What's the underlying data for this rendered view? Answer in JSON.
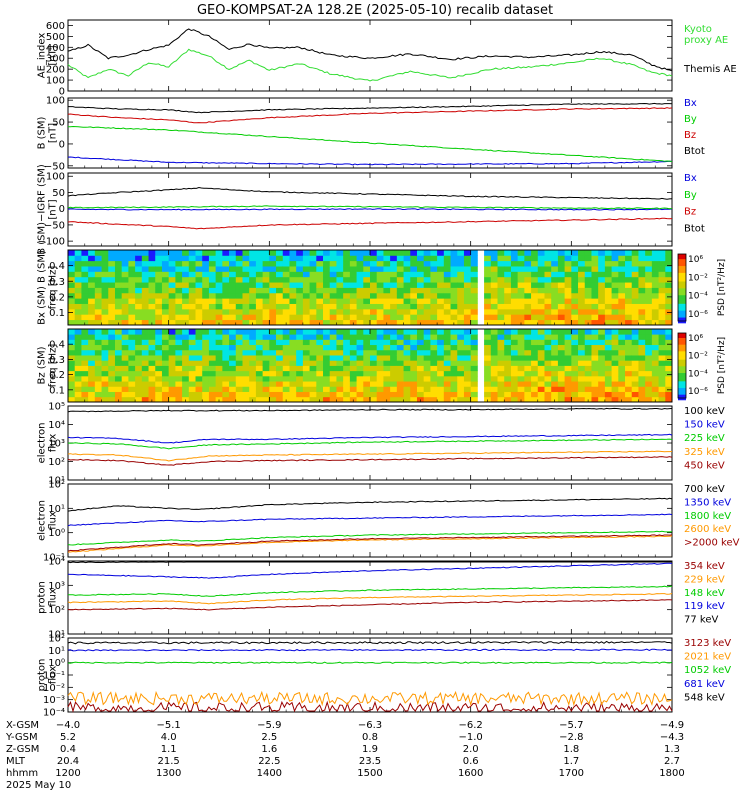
{
  "title": "GEO-KOMPSAT-2A 128.2E (2025-05-10) recalib dataset",
  "colors": {
    "black": "#000000",
    "blue": "#0000dd",
    "green": "#00cc00",
    "red": "#cc0000",
    "orange": "#ff9900",
    "darkred": "#990000",
    "lime": "#33dd33"
  },
  "time_axis": {
    "start_hour": 12,
    "end_hour": 18,
    "tick_labels": [
      "1200",
      "1300",
      "1400",
      "1500",
      "1600",
      "1700",
      "1800"
    ]
  },
  "footer": {
    "rows": [
      {
        "label": "X-GSM",
        "values": [
          "−4.0",
          "−5.1",
          "−5.9",
          "−6.3",
          "−6.2",
          "−5.7",
          "−4.9"
        ]
      },
      {
        "label": "Y-GSM",
        "values": [
          "5.2",
          "4.0",
          "2.5",
          "0.8",
          "−1.0",
          "−2.8",
          "−4.3"
        ]
      },
      {
        "label": "Z-GSM",
        "values": [
          "0.4",
          "1.1",
          "1.6",
          "1.9",
          "2.0",
          "1.8",
          "1.3"
        ]
      },
      {
        "label": "MLT",
        "values": [
          "20.4",
          "21.5",
          "22.5",
          "23.5",
          "0.6",
          "1.7",
          "2.7"
        ]
      },
      {
        "label": "hhmm",
        "values": [
          "1200",
          "1300",
          "1400",
          "1500",
          "1600",
          "1700",
          "1800"
        ]
      }
    ],
    "date": "2025 May 10"
  },
  "chart_data": [
    {
      "type": "line",
      "ylabel_lines": [
        "AE_index",
        "[nT]"
      ],
      "ylim": [
        0,
        650
      ],
      "y_ticks": [
        "0",
        "100",
        "200",
        "300",
        "400",
        "500",
        "600"
      ],
      "y_tick_values": [
        0,
        100,
        200,
        300,
        400,
        500,
        600
      ],
      "scale": "linear",
      "series": [
        {
          "name": "Kyoto proxy AE",
          "label_lines": [
            "Kyoto",
            "proxy AE"
          ],
          "color": "#33dd33",
          "x": [
            12.0,
            12.2,
            12.4,
            12.6,
            12.8,
            13.0,
            13.2,
            13.4,
            13.6,
            13.8,
            14.0,
            14.3,
            14.6,
            15.0,
            15.4,
            15.8,
            16.2,
            16.6,
            17.0,
            17.3,
            17.6,
            17.8,
            18.0
          ],
          "y": [
            240,
            120,
            200,
            140,
            260,
            220,
            380,
            320,
            200,
            280,
            190,
            250,
            160,
            90,
            180,
            120,
            200,
            220,
            260,
            300,
            240,
            170,
            140
          ]
        },
        {
          "name": "Themis AE",
          "label_lines": [
            "Themis AE"
          ],
          "color": "#000000",
          "x": [
            12.0,
            12.2,
            12.4,
            12.6,
            12.8,
            13.0,
            13.2,
            13.4,
            13.6,
            13.8,
            14.0,
            14.3,
            14.6,
            15.0,
            15.4,
            15.8,
            16.2,
            16.6,
            17.0,
            17.3,
            17.6,
            17.8,
            18.0
          ],
          "y": [
            360,
            420,
            300,
            330,
            380,
            420,
            570,
            500,
            380,
            430,
            390,
            400,
            330,
            300,
            340,
            290,
            320,
            310,
            330,
            360,
            330,
            240,
            180
          ]
        }
      ]
    },
    {
      "type": "line",
      "ylabel_lines": [
        "B (SM)",
        "[nT]"
      ],
      "ylim": [
        -55,
        105
      ],
      "y_ticks": [
        "−50",
        "0",
        "50",
        "100"
      ],
      "y_tick_values": [
        -50,
        0,
        50,
        100
      ],
      "scale": "linear",
      "series": [
        {
          "name": "Bx",
          "color": "#0000dd",
          "x": [
            12,
            13,
            14,
            15,
            16,
            17,
            18
          ],
          "y": [
            -30,
            -42,
            -45,
            -47,
            -46,
            -45,
            -40
          ]
        },
        {
          "name": "By",
          "color": "#00cc00",
          "x": [
            12,
            13,
            14,
            15,
            16,
            17,
            18
          ],
          "y": [
            40,
            32,
            17,
            2,
            -12,
            -26,
            -40
          ]
        },
        {
          "name": "Bz",
          "color": "#cc0000",
          "x": [
            12,
            12.5,
            13,
            13.3,
            14,
            15,
            16,
            17,
            18
          ],
          "y": [
            68,
            60,
            55,
            48,
            60,
            70,
            75,
            80,
            82
          ]
        },
        {
          "name": "Btot",
          "color": "#000000",
          "x": [
            12,
            12.5,
            13,
            13.3,
            14,
            15,
            16,
            17,
            18
          ],
          "y": [
            85,
            80,
            78,
            72,
            78,
            82,
            86,
            91,
            92
          ]
        }
      ]
    },
    {
      "type": "line",
      "ylabel_lines": [
        "B (SM)−IGRF (SM)",
        "[nT]"
      ],
      "ylim": [
        -115,
        110
      ],
      "y_ticks": [
        "−100",
        "−50",
        "0",
        "50",
        "100"
      ],
      "y_tick_values": [
        -100,
        -50,
        0,
        50,
        100
      ],
      "scale": "linear",
      "series": [
        {
          "name": "Bx",
          "color": "#0000dd",
          "x": [
            12,
            13,
            14,
            15,
            16,
            17,
            18
          ],
          "y": [
            -2,
            -3,
            -2,
            -1,
            -2,
            -3,
            -2
          ]
        },
        {
          "name": "By",
          "color": "#00cc00",
          "x": [
            12,
            13,
            14,
            15,
            16,
            17,
            18
          ],
          "y": [
            3,
            5,
            8,
            6,
            4,
            2,
            1
          ]
        },
        {
          "name": "Bz",
          "color": "#cc0000",
          "x": [
            12,
            12.5,
            13,
            13.3,
            14,
            15,
            16,
            17,
            18
          ],
          "y": [
            -40,
            -48,
            -55,
            -62,
            -50,
            -45,
            -40,
            -35,
            -30
          ]
        },
        {
          "name": "Btot",
          "color": "#000000",
          "x": [
            12,
            12.5,
            13,
            13.3,
            14,
            15,
            16,
            17,
            18
          ],
          "y": [
            40,
            50,
            58,
            64,
            52,
            45,
            38,
            34,
            30
          ]
        }
      ]
    },
    {
      "type": "heatmap",
      "ylabel_lines": [
        "Bx (SM) B (SM)",
        "freq [Hz]"
      ],
      "ylim": [
        0.02,
        0.5
      ],
      "y_ticks": [
        "0.1",
        "0.2",
        "0.3",
        "0.4"
      ],
      "y_tick_values": [
        0.1,
        0.2,
        0.3,
        0.4
      ],
      "data_gap_hour": 16.1,
      "colorbar": {
        "label": "PSD [nT²/Hz]",
        "ticks": [
          "10⁶",
          "10⁻²",
          "10⁻⁴",
          "10⁻⁶"
        ]
      }
    },
    {
      "type": "heatmap",
      "ylabel_lines": [
        "Bz (SM)",
        "freq [Hz]"
      ],
      "ylim": [
        0.02,
        0.5
      ],
      "y_ticks": [
        "0.1",
        "0.2",
        "0.3",
        "0.4"
      ],
      "y_tick_values": [
        0.1,
        0.2,
        0.3,
        0.4
      ],
      "data_gap_hour": 16.1,
      "colorbar": {
        "label": "PSD [nT²/Hz]",
        "ticks": [
          "10⁶",
          "10⁻²",
          "10⁻⁴",
          "10⁻⁶"
        ]
      }
    },
    {
      "type": "line",
      "ylabel_lines": [
        "electron",
        "flux"
      ],
      "scale": "log",
      "ylim_log": [
        1,
        5
      ],
      "y_ticks": [
        "10¹",
        "10²",
        "10³",
        "10⁴",
        "10⁵"
      ],
      "y_tick_values": [
        1,
        2,
        3,
        4,
        5
      ],
      "series": [
        {
          "name": "100 keV",
          "color": "#000000",
          "x": [
            12,
            13,
            14,
            15,
            16,
            17,
            18
          ],
          "y_log": [
            4.7,
            4.75,
            4.75,
            4.8,
            4.8,
            4.85,
            4.85
          ]
        },
        {
          "name": "150 keV",
          "color": "#0000dd",
          "x": [
            12,
            12.5,
            13,
            13.4,
            14,
            15,
            16,
            17,
            18
          ],
          "y_log": [
            3.3,
            3.25,
            3.0,
            3.2,
            3.2,
            3.3,
            3.35,
            3.4,
            3.45
          ]
        },
        {
          "name": "225 keV",
          "color": "#00cc00",
          "x": [
            12,
            12.5,
            13,
            13.4,
            14,
            15,
            16,
            17,
            18
          ],
          "y_log": [
            3.0,
            2.95,
            2.7,
            2.9,
            2.95,
            3.05,
            3.1,
            3.15,
            3.2
          ]
        },
        {
          "name": "325 keV",
          "color": "#ff9900",
          "x": [
            12,
            12.5,
            13,
            13.4,
            14,
            15,
            16,
            17,
            18
          ],
          "y_log": [
            2.4,
            2.35,
            2.05,
            2.3,
            2.35,
            2.4,
            2.45,
            2.5,
            2.55
          ]
        },
        {
          "name": "450 keV",
          "color": "#990000",
          "x": [
            12,
            12.5,
            13,
            13.4,
            14,
            15,
            16,
            17,
            18
          ],
          "y_log": [
            2.1,
            2.05,
            1.8,
            2.0,
            2.05,
            2.1,
            2.15,
            2.2,
            2.25
          ]
        }
      ]
    },
    {
      "type": "line",
      "ylabel_lines": [
        "electron",
        "flux"
      ],
      "scale": "log",
      "ylim_log": [
        -1,
        2
      ],
      "y_ticks": [
        "10⁻¹",
        "10⁰",
        "10¹",
        "10²"
      ],
      "y_tick_values": [
        -1,
        0,
        1,
        2
      ],
      "series": [
        {
          "name": "700 keV",
          "color": "#000000",
          "x": [
            12,
            12.5,
            13,
            13.3,
            14,
            15,
            16,
            17,
            18
          ],
          "y_log": [
            0.9,
            1.1,
            1.0,
            0.95,
            1.15,
            1.25,
            1.3,
            1.35,
            1.4
          ]
        },
        {
          "name": "1350 keV",
          "color": "#0000dd",
          "x": [
            12,
            13,
            13.3,
            14,
            15,
            16,
            17,
            18
          ],
          "y_log": [
            0.3,
            0.5,
            0.45,
            0.55,
            0.6,
            0.65,
            0.7,
            0.75
          ]
        },
        {
          "name": "1800 keV",
          "color": "#00cc00",
          "x": [
            12,
            13,
            13.3,
            14,
            15,
            16,
            17,
            18
          ],
          "y_log": [
            -0.5,
            -0.3,
            -0.35,
            -0.2,
            -0.1,
            -0.05,
            0.0,
            0.05
          ]
        },
        {
          "name": "2600 keV",
          "color": "#ff9900",
          "x": [
            12,
            13,
            13.3,
            14,
            15,
            16,
            17,
            18
          ],
          "y_log": [
            -0.8,
            -0.5,
            -0.55,
            -0.4,
            -0.3,
            -0.25,
            -0.2,
            -0.15
          ]
        },
        {
          "name": ">2000 keV",
          "color": "#990000",
          "x": [
            12,
            13,
            13.3,
            14,
            15,
            16,
            17,
            18
          ],
          "y_log": [
            -0.75,
            -0.45,
            -0.5,
            -0.35,
            -0.25,
            -0.2,
            -0.15,
            -0.1
          ]
        }
      ]
    },
    {
      "type": "line",
      "ylabel_lines": [
        "proton",
        "flux"
      ],
      "scale": "log",
      "ylim_log": [
        1,
        4
      ],
      "y_ticks": [
        "10¹",
        "10²",
        "10³",
        "10⁴"
      ],
      "y_tick_values": [
        1,
        2,
        3,
        4
      ],
      "series": [
        {
          "name": "354 keV",
          "color": "#990000",
          "x": [
            12,
            13,
            13.4,
            14,
            15,
            16,
            17,
            18
          ],
          "y_log": [
            2.0,
            2.05,
            2.0,
            2.1,
            2.2,
            2.3,
            2.35,
            2.4
          ]
        },
        {
          "name": "229 keV",
          "color": "#ff9900",
          "x": [
            12,
            13,
            13.4,
            14,
            15,
            16,
            17,
            18
          ],
          "y_log": [
            2.3,
            2.35,
            2.25,
            2.4,
            2.5,
            2.55,
            2.6,
            2.65
          ]
        },
        {
          "name": "148 keV",
          "color": "#00cc00",
          "x": [
            12,
            13,
            13.4,
            14,
            15,
            16,
            17,
            18
          ],
          "y_log": [
            2.6,
            2.65,
            2.55,
            2.7,
            2.8,
            2.85,
            2.9,
            2.95
          ]
        },
        {
          "name": "119 keV",
          "color": "#0000dd",
          "x": [
            12,
            13,
            13.4,
            14,
            15,
            16,
            17,
            18
          ],
          "y_log": [
            3.45,
            3.35,
            3.3,
            3.45,
            3.6,
            3.7,
            3.8,
            3.9
          ]
        },
        {
          "name": "77 keV",
          "color": "#000000",
          "x": [
            12,
            13,
            14,
            15,
            16,
            17,
            18
          ],
          "y_log": [
            3.95,
            3.97,
            3.98,
            3.99,
            4.0,
            4.0,
            4.0
          ]
        }
      ]
    },
    {
      "type": "line",
      "ylabel_lines": [
        "proton",
        "flux"
      ],
      "scale": "log",
      "ylim_log": [
        -4,
        2
      ],
      "y_ticks": [
        "10⁻⁴",
        "10⁻³",
        "10⁻²",
        "10⁻¹",
        "10⁰",
        "10¹",
        "10²"
      ],
      "y_tick_values": [
        -4,
        -3,
        -2,
        -1,
        0,
        1,
        2
      ],
      "series": [
        {
          "name": "3123 keV",
          "color": "#990000",
          "x": [
            12,
            18
          ],
          "y_log": [
            -3.7,
            -3.7
          ],
          "noise": 0.5
        },
        {
          "name": "2021 keV",
          "color": "#ff9900",
          "x": [
            12,
            18
          ],
          "y_log": [
            -2.9,
            -2.9
          ],
          "noise": 0.5
        },
        {
          "name": "1052 keV",
          "color": "#00cc00",
          "x": [
            12,
            18
          ],
          "y_log": [
            0.0,
            0.0
          ],
          "noise": 0.05
        },
        {
          "name": "681 keV",
          "color": "#0000dd",
          "x": [
            12,
            18
          ],
          "y_log": [
            1.0,
            1.05
          ],
          "noise": 0.05
        },
        {
          "name": "548 keV",
          "color": "#000000",
          "x": [
            12,
            18
          ],
          "y_log": [
            1.6,
            1.65
          ],
          "noise": 0.08
        }
      ]
    }
  ]
}
